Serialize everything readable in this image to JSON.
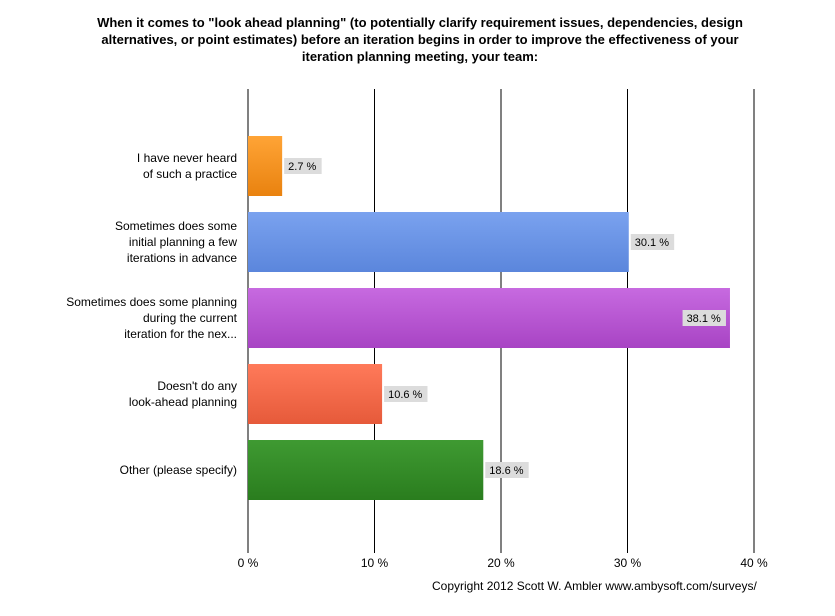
{
  "chart_data": {
    "type": "bar",
    "orientation": "horizontal",
    "title_lines": [
      "When it comes to \"look ahead planning\" (to potentially clarify requirement issues, dependencies, design",
      "alternatives, or point estimates) before an iteration begins in order to improve the effectiveness of your",
      "iteration planning meeting, your team:"
    ],
    "categories": [
      [
        "I have never heard",
        "of such a practice"
      ],
      [
        "Sometimes does some",
        "initial planning a few",
        "iterations in advance"
      ],
      [
        "Sometimes does some planning",
        "during the current",
        "iteration for the nex..."
      ],
      [
        "Doesn't do any",
        "look-ahead planning"
      ],
      [
        "Other (please specify)"
      ]
    ],
    "values": [
      2.7,
      30.1,
      38.1,
      10.6,
      18.6
    ],
    "value_labels": [
      "2.7 %",
      "30.1 %",
      "38.1 %",
      "10.6 %",
      "18.6 %"
    ],
    "bar_colors": [
      "#e9820f",
      "#5b86dc",
      "#a844c4",
      "#e65a3a",
      "#2a7d1e"
    ],
    "bar_colors_light": [
      "#ffa436",
      "#7aa2ef",
      "#c76ae0",
      "#ff7a5a",
      "#3f9a32"
    ],
    "xlim": [
      0,
      40
    ],
    "xticks": [
      0,
      10,
      20,
      30,
      40
    ],
    "xtick_labels": [
      "0 %",
      "10 %",
      "20 %",
      "30 %",
      "40 %"
    ],
    "grid": true
  },
  "footer": {
    "copyright": "Copyright 2012 Scott W. Ambler  www.ambysoft.com/surveys/"
  }
}
